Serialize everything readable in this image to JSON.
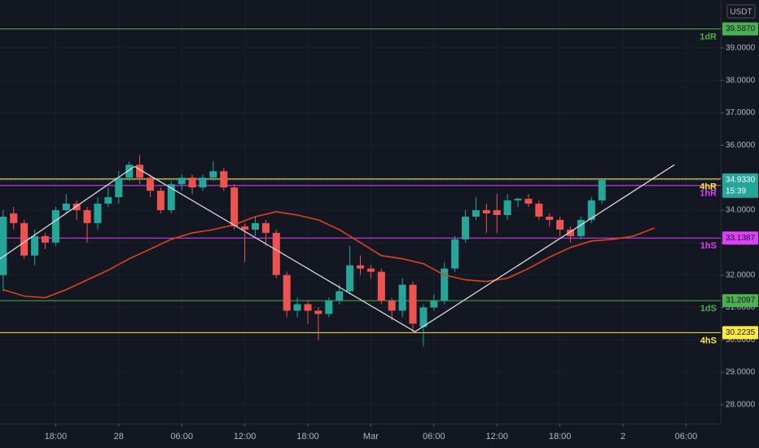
{
  "chart_data": {
    "type": "candlestick",
    "currency": "USDT",
    "xlim": [
      -11.3,
      57.3
    ],
    "ylim": [
      27.42,
      40.48
    ],
    "xticks": [
      {
        "value": -6,
        "label": "18:00"
      },
      {
        "value": 0,
        "label": "28"
      },
      {
        "value": 6,
        "label": "06:00"
      },
      {
        "value": 12,
        "label": "12:00"
      },
      {
        "value": 18,
        "label": "18:00"
      },
      {
        "value": 24,
        "label": "Mar"
      },
      {
        "value": 30,
        "label": "06:00"
      },
      {
        "value": 36,
        "label": "12:00"
      },
      {
        "value": 42,
        "label": "18:00"
      },
      {
        "value": 48,
        "label": "2"
      },
      {
        "value": 54,
        "label": "06:00"
      }
    ],
    "yticks": [
      {
        "value": 28,
        "label": "28.0000"
      },
      {
        "value": 29,
        "label": "29.0000"
      },
      {
        "value": 30,
        "label": "30.0000"
      },
      {
        "value": 31,
        "label": "31.0000"
      },
      {
        "value": 32,
        "label": "32.0000"
      },
      {
        "value": 33,
        "label": "33.0000"
      },
      {
        "value": 34,
        "label": "34.0000"
      },
      {
        "value": 35,
        "label": "35.0000"
      },
      {
        "value": 36,
        "label": "36.0000"
      },
      {
        "value": 37,
        "label": "37.0000"
      },
      {
        "value": 38,
        "label": "38.0000"
      },
      {
        "value": 39,
        "label": "39.0000"
      }
    ],
    "grid": true,
    "up_color": "#26a69a",
    "down_color": "#ef5350",
    "candles": {
      "x": [
        -11,
        -10,
        -9,
        -8,
        -7,
        -6,
        -5,
        -4,
        -3,
        -2,
        -1,
        0,
        1,
        2,
        3,
        4,
        5,
        6,
        7,
        8,
        9,
        10,
        11,
        12,
        13,
        14,
        15,
        16,
        17,
        18,
        19,
        20,
        21,
        22,
        23,
        24,
        25,
        26,
        27,
        28,
        29,
        30,
        31,
        32,
        33,
        34,
        35,
        36,
        37,
        38,
        39,
        40,
        41,
        42,
        43,
        44,
        45,
        46
      ],
      "open": [
        32.0,
        33.9,
        33.6,
        32.6,
        33.2,
        33.0,
        34.0,
        34.2,
        34.0,
        33.6,
        34.2,
        34.4,
        35.0,
        35.4,
        35.0,
        34.6,
        34.0,
        34.8,
        35.0,
        34.7,
        35.0,
        35.2,
        34.7,
        33.5,
        33.4,
        33.6,
        33.3,
        32.0,
        30.9,
        31.1,
        30.9,
        30.8,
        31.2,
        31.5,
        32.3,
        32.2,
        32.1,
        31.2,
        30.9,
        31.7,
        30.4,
        31.0,
        31.2,
        32.2,
        33.1,
        33.8,
        34.0,
        34.0,
        33.85,
        34.3,
        34.35,
        34.2,
        33.8,
        33.7,
        33.4,
        33.2,
        33.7,
        34.3
      ],
      "high": [
        34.0,
        34.1,
        33.7,
        33.4,
        33.3,
        34.1,
        34.5,
        34.3,
        34.1,
        34.4,
        34.7,
        35.2,
        35.5,
        35.7,
        35.1,
        34.7,
        34.9,
        35.1,
        35.1,
        35.1,
        35.5,
        35.3,
        34.8,
        33.6,
        33.8,
        33.7,
        33.4,
        32.1,
        31.3,
        31.2,
        31.0,
        31.3,
        31.7,
        32.9,
        32.6,
        32.3,
        32.2,
        31.3,
        31.9,
        31.8,
        31.1,
        31.4,
        32.4,
        33.2,
        34.0,
        34.4,
        34.2,
        34.5,
        34.5,
        34.4,
        34.5,
        34.3,
        33.9,
        33.8,
        33.5,
        33.8,
        34.4,
        34.95
      ],
      "low": [
        31.5,
        33.4,
        32.5,
        32.3,
        32.8,
        32.9,
        33.9,
        33.7,
        33.0,
        33.4,
        34.1,
        34.2,
        34.9,
        34.8,
        34.4,
        33.9,
        33.9,
        34.6,
        34.5,
        34.6,
        34.9,
        34.6,
        33.4,
        32.4,
        33.2,
        32.9,
        31.9,
        30.7,
        30.7,
        30.5,
        30.0,
        30.7,
        31.1,
        31.4,
        32.0,
        31.9,
        31.1,
        30.6,
        30.7,
        30.2,
        29.8,
        30.9,
        31.1,
        32.1,
        33.0,
        33.7,
        33.3,
        33.3,
        33.7,
        34.1,
        34.1,
        33.7,
        33.5,
        33.2,
        33.0,
        33.1,
        33.6,
        34.2
      ],
      "close": [
        33.8,
        33.6,
        32.6,
        33.2,
        33.0,
        34.0,
        34.2,
        34.0,
        33.6,
        34.2,
        34.4,
        35.0,
        35.4,
        35.0,
        34.6,
        34.0,
        34.8,
        35.0,
        34.7,
        35.0,
        35.2,
        34.7,
        33.5,
        33.4,
        33.6,
        33.3,
        32.0,
        30.9,
        31.1,
        30.9,
        30.8,
        31.2,
        31.5,
        32.3,
        32.2,
        32.1,
        31.2,
        30.9,
        31.7,
        30.5,
        31.0,
        31.2,
        32.2,
        33.1,
        33.8,
        34.0,
        33.9,
        33.85,
        34.3,
        34.35,
        34.2,
        33.8,
        33.7,
        33.4,
        33.2,
        33.7,
        34.3,
        34.933
      ]
    },
    "moving_average": {
      "color": "#e0421f",
      "x": [
        -11,
        -9,
        -7,
        -5,
        -3,
        -1,
        1,
        3,
        5,
        7,
        9,
        11,
        13,
        15,
        17,
        19,
        21,
        23,
        25,
        27,
        29,
        31,
        33,
        35,
        37,
        39,
        41,
        43,
        45,
        47,
        49,
        51
      ],
      "values": [
        31.55,
        31.35,
        31.3,
        31.55,
        31.85,
        32.15,
        32.5,
        32.8,
        33.1,
        33.3,
        33.4,
        33.55,
        33.8,
        33.95,
        33.85,
        33.7,
        33.4,
        33.0,
        32.6,
        32.5,
        32.35,
        32.0,
        31.85,
        31.8,
        31.9,
        32.2,
        32.55,
        32.85,
        33.05,
        33.1,
        33.2,
        33.45
      ]
    },
    "trendline": {
      "color": "#e6e6e6",
      "x": [
        -11.3,
        1.5,
        28.2,
        52.9
      ],
      "values": [
        32.5,
        35.35,
        30.25,
        35.4
      ]
    },
    "levels": [
      {
        "name": "1dR",
        "value": 39.587,
        "value_label": "39.5870",
        "color": "#4caf50"
      },
      {
        "name": "4hR",
        "value": 34.96,
        "color": "#ffeb3b"
      },
      {
        "name": "1hR",
        "value": 34.76,
        "color": "#e040fb"
      },
      {
        "name": "1hS",
        "value": 33.1387,
        "value_label": "33.1387",
        "color": "#e040fb"
      },
      {
        "name": "1dS",
        "value": 31.2097,
        "value_label": "31.2097",
        "color": "#4caf50"
      },
      {
        "name": "4hS",
        "value": 30.2235,
        "value_label": "30.2235",
        "color": "#ffeb3b"
      }
    ],
    "last_price": {
      "value": 34.933,
      "value_label": "34.9330",
      "countdown": "15:39",
      "color": "#26a69a"
    }
  }
}
